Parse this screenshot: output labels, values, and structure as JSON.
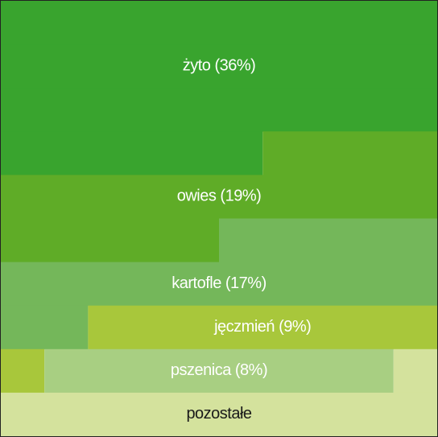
{
  "chart_data": {
    "type": "waffle",
    "labels": [
      "żyto (36%)",
      "owies (19%)",
      "kartofle (17%)",
      "jęczmień (9%)",
      "pszenica (8%)",
      "pozostałe"
    ],
    "values": [
      36,
      19,
      17,
      9,
      8,
      11
    ],
    "colors": [
      "#39a42e",
      "#5fac27",
      "#74b75a",
      "#a8c73b",
      "#a8cf82",
      "#d4e29d"
    ],
    "label_colors": [
      "#ffffff",
      "#ffffff",
      "#ffffff",
      "#ffffff",
      "#ffffff",
      "#1a1a1a"
    ]
  }
}
